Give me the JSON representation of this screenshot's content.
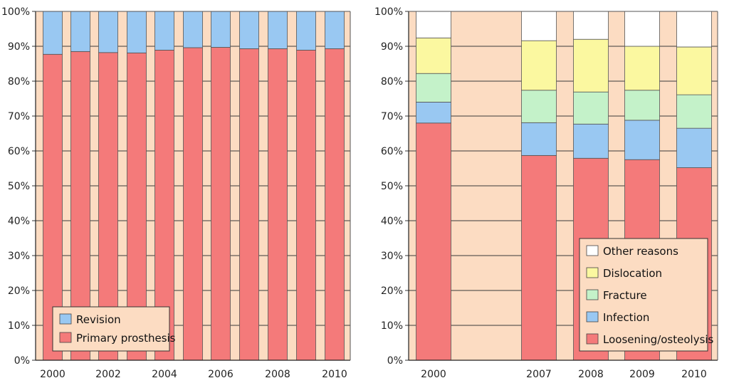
{
  "chart_data": [
    {
      "type": "bar",
      "stacked": true,
      "normalized": true,
      "categories": [
        "2000",
        "2001",
        "2002",
        "2003",
        "2004",
        "2005",
        "2006",
        "2007",
        "2008",
        "2009",
        "2010"
      ],
      "x_tick_labels": [
        "2000",
        "",
        "2002",
        "",
        "2004",
        "",
        "2006",
        "",
        "2008",
        "",
        "2010"
      ],
      "y_tick_labels": [
        "0%",
        "10%",
        "20%",
        "30%",
        "40%",
        "50%",
        "60%",
        "70%",
        "80%",
        "90%",
        "100%"
      ],
      "ylim": [
        0,
        100
      ],
      "series": [
        {
          "name": "Primary prosthesis",
          "color": "#f47a7a",
          "values": [
            87.7,
            88.5,
            88.2,
            88.1,
            88.9,
            89.6,
            89.7,
            89.3,
            89.3,
            88.9,
            89.3
          ]
        },
        {
          "name": "Revision",
          "color": "#99c8f2",
          "values": [
            12.3,
            11.5,
            11.8,
            11.9,
            11.1,
            10.4,
            10.3,
            10.7,
            10.7,
            11.1,
            10.7
          ]
        }
      ],
      "legend_order": [
        "Revision",
        "Primary prosthesis"
      ],
      "legend_position": "bottom-left",
      "background_color": "#fcdcc2",
      "grid": true
    },
    {
      "type": "bar",
      "stacked": true,
      "normalized": true,
      "categories": [
        "2000",
        "2007",
        "2008",
        "2009",
        "2010"
      ],
      "x_tick_labels": [
        "2000",
        "2007",
        "2008",
        "2009",
        "2010"
      ],
      "y_tick_labels": [
        "0%",
        "10%",
        "20%",
        "30%",
        "40%",
        "50%",
        "60%",
        "70%",
        "80%",
        "90%",
        "100%"
      ],
      "ylim": [
        0,
        100
      ],
      "series": [
        {
          "name": "Loosening/osteolysis",
          "color": "#f47a7a",
          "values": [
            68.0,
            58.7,
            57.9,
            57.5,
            55.2
          ]
        },
        {
          "name": "Infection",
          "color": "#99c8f2",
          "values": [
            6.0,
            9.4,
            9.8,
            11.3,
            11.3
          ]
        },
        {
          "name": "Fracture",
          "color": "#c4f2c9",
          "values": [
            8.2,
            9.3,
            9.2,
            8.6,
            9.6
          ]
        },
        {
          "name": "Dislocation",
          "color": "#fbf8a0",
          "values": [
            10.2,
            14.2,
            15.1,
            12.6,
            13.7
          ]
        },
        {
          "name": "Other reasons",
          "color": "#ffffff",
          "values": [
            7.6,
            8.4,
            8.0,
            10.0,
            10.2
          ]
        }
      ],
      "legend_order": [
        "Other reasons",
        "Dislocation",
        "Fracture",
        "Infection",
        "Loosening/osteolysis"
      ],
      "legend_position": "bottom-right",
      "background_color": "#fcdcc2",
      "grid": true
    }
  ]
}
